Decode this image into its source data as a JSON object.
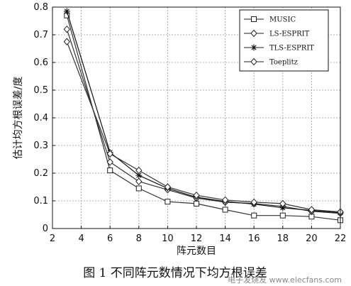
{
  "chart_data": {
    "type": "line",
    "xlabel": "阵元数目",
    "ylabel": "估计均方根误差/度",
    "xlim": [
      2,
      22
    ],
    "ylim": [
      0,
      0.8
    ],
    "xticks": [
      2,
      4,
      6,
      8,
      10,
      12,
      14,
      16,
      18,
      20,
      22
    ],
    "yticks": [
      0,
      0.1,
      0.2,
      0.3,
      0.4,
      0.5,
      0.6,
      0.7,
      0.8
    ],
    "grid": true,
    "legend_position": "top-right",
    "x": [
      3,
      6,
      8,
      10,
      12,
      14,
      16,
      18,
      20,
      22
    ],
    "series": [
      {
        "name": "MUSIC",
        "marker": "square",
        "values": [
          0.77,
          0.21,
          0.145,
          0.097,
          0.09,
          0.068,
          0.047,
          0.047,
          0.043,
          0.03
        ]
      },
      {
        "name": "LS-ESPRIT",
        "marker": "diamond",
        "values": [
          0.72,
          0.24,
          0.17,
          0.14,
          0.11,
          0.095,
          0.09,
          0.08,
          0.062,
          0.055
        ]
      },
      {
        "name": "TLS-ESPRIT",
        "marker": "star",
        "values": [
          0.785,
          0.275,
          0.192,
          0.145,
          0.113,
          0.098,
          0.088,
          0.075,
          0.065,
          0.057
        ]
      },
      {
        "name": "Toeplitz",
        "marker": "diamond",
        "values": [
          0.675,
          0.27,
          0.21,
          0.15,
          0.12,
          0.103,
          0.095,
          0.09,
          0.068,
          0.06
        ]
      }
    ]
  },
  "caption": "图 1   不同阵元数情况下均方根误差",
  "watermark": "电子发烧友 www.elecfans.com"
}
